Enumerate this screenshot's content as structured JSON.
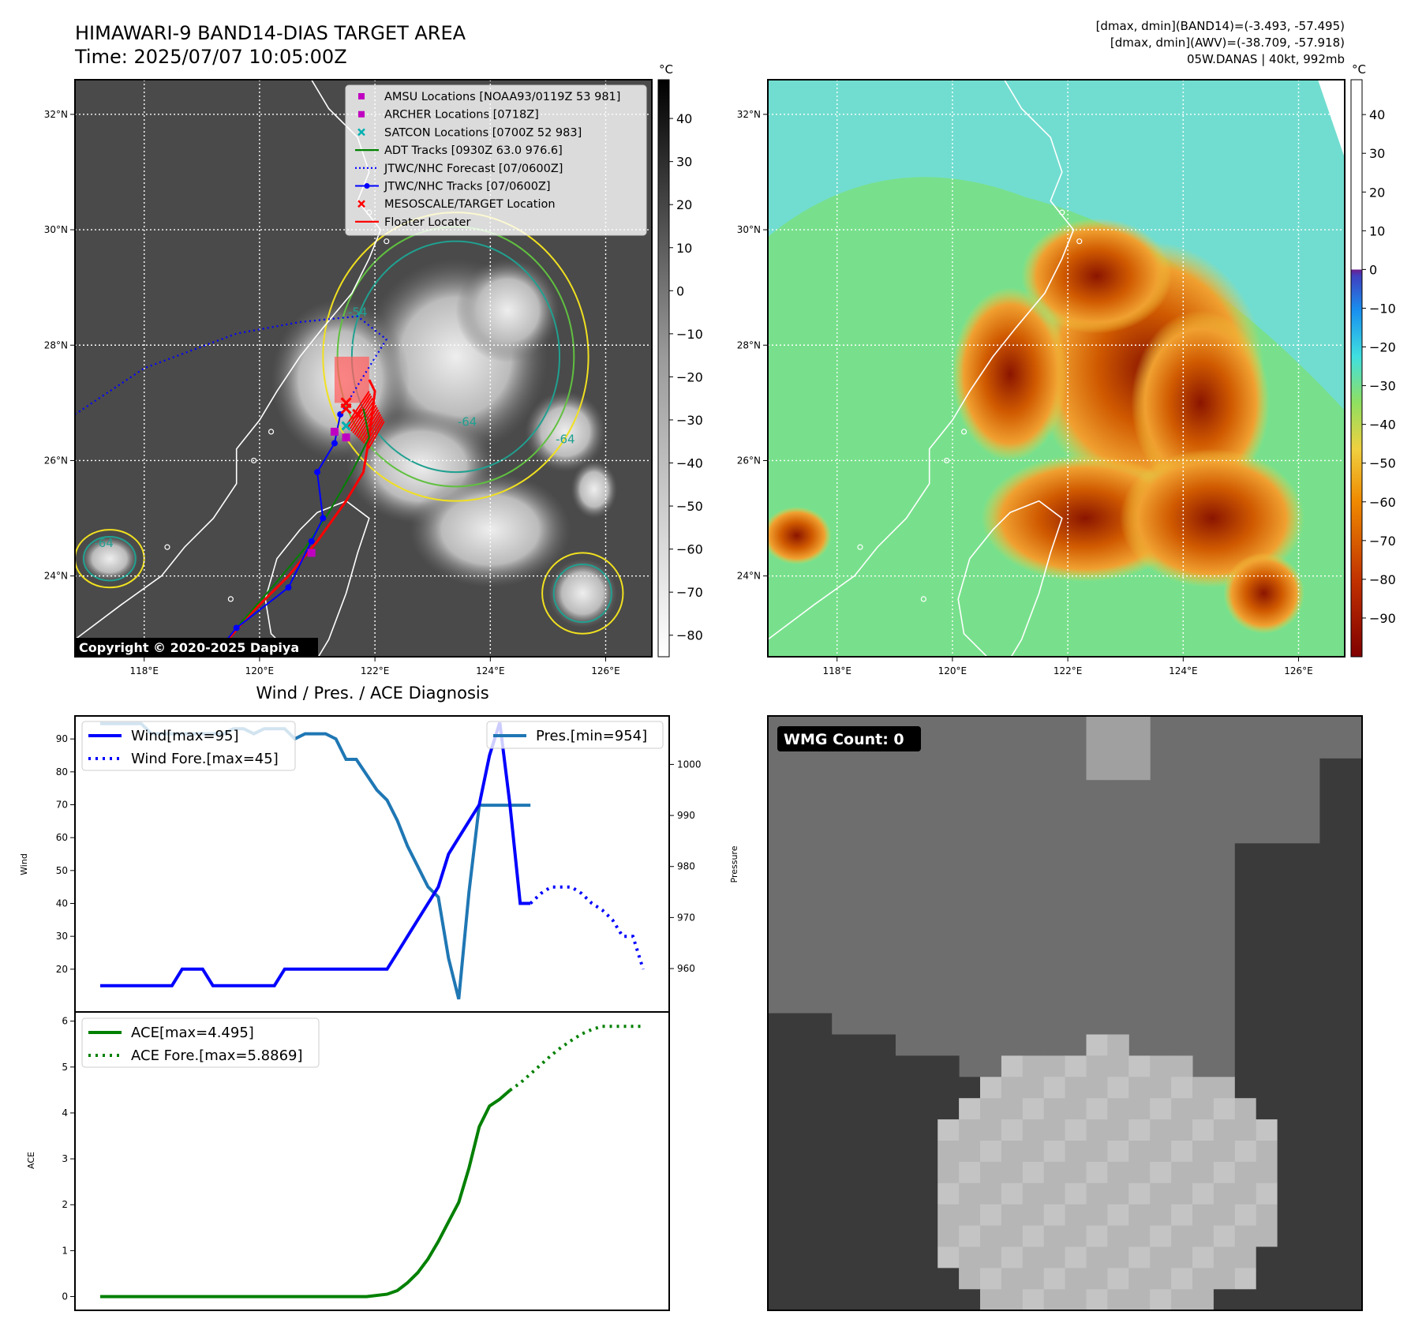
{
  "header": {
    "title_line1": "HIMAWARI-9 BAND14-DIAS TARGET AREA",
    "title_line2": "Time: 2025/07/07 10:05:00Z",
    "info_line1": "[dmax, dmin](BAND14)=(-3.493, -57.495)",
    "info_line2": "[dmax, dmin](AWV)=(-38.709, -57.918)",
    "info_line3": "05W.DANAS | 40kt, 992mb"
  },
  "copyright": "Copyright © 2020-2025 Dapiya",
  "map": {
    "lat_labels": [
      "32°N",
      "30°N",
      "28°N",
      "26°N",
      "24°N"
    ],
    "lat_values": [
      32,
      30,
      28,
      26,
      24
    ],
    "lon_labels": [
      "118°E",
      "120°E",
      "122°E",
      "124°E",
      "126°E"
    ],
    "lon_values": [
      118,
      120,
      122,
      124,
      126
    ],
    "lat_range": [
      22.6,
      32.6
    ],
    "lon_range": [
      116.8,
      126.8
    ],
    "contour_labels": [
      "-54",
      "-64",
      "-64",
      "-64"
    ]
  },
  "legend_map": [
    {
      "label": "AMSU Locations [NOAA93/0119Z 53 981]",
      "symbol": "square",
      "color": "#c000c0"
    },
    {
      "label": "ARCHER Locations [0718Z]",
      "symbol": "square",
      "color": "#c000c0"
    },
    {
      "label": "SATCON Locations [0700Z 52 983]",
      "symbol": "x",
      "color": "#00b0b0"
    },
    {
      "label": "ADT Tracks [0930Z 63.0 976.6]",
      "symbol": "line",
      "color": "#008000"
    },
    {
      "label": "JTWC/NHC Forecast [07/0600Z]",
      "symbol": "dotted",
      "color": "#0000ff"
    },
    {
      "label": "JTWC/NHC Tracks [07/0600Z]",
      "symbol": "line-dot",
      "color": "#0000ff"
    },
    {
      "label": "MESOSCALE/TARGET Location",
      "symbol": "x",
      "color": "#ff0000"
    },
    {
      "label": "Floater Locater",
      "symbol": "line",
      "color": "#ff0000"
    }
  ],
  "colorbar_ir": {
    "unit": "°C",
    "ticks": [
      "40",
      "30",
      "20",
      "10",
      "0",
      "−10",
      "−20",
      "−30",
      "−40",
      "−50",
      "−60",
      "−70",
      "−80"
    ],
    "tick_values": [
      40,
      30,
      20,
      10,
      0,
      -10,
      -20,
      -30,
      -40,
      -50,
      -60,
      -70,
      -80
    ],
    "range": [
      -85,
      49
    ]
  },
  "colorbar_wv": {
    "unit": "°C",
    "ticks": [
      "40",
      "30",
      "20",
      "10",
      "0",
      "−10",
      "−20",
      "−30",
      "−40",
      "−50",
      "−60",
      "−70",
      "−80",
      "−90"
    ],
    "tick_values": [
      40,
      30,
      20,
      10,
      0,
      -10,
      -20,
      -30,
      -40,
      -50,
      -60,
      -70,
      -80,
      -90
    ],
    "range": [
      -100,
      49
    ]
  },
  "tracks": {
    "jtwc_track": [
      [
        119.2,
        22.6
      ],
      [
        119.6,
        23.1
      ],
      [
        120.5,
        23.8
      ],
      [
        120.9,
        24.6
      ],
      [
        121.1,
        25.0
      ],
      [
        121.0,
        25.8
      ],
      [
        121.3,
        26.3
      ],
      [
        121.4,
        26.8
      ]
    ],
    "jtwc_forecast": [
      [
        116.8,
        26.8
      ],
      [
        118.0,
        27.6
      ],
      [
        119.6,
        28.2
      ],
      [
        120.7,
        28.4
      ],
      [
        121.7,
        28.5
      ],
      [
        122.2,
        28.1
      ],
      [
        121.7,
        27.3
      ],
      [
        121.4,
        26.8
      ]
    ],
    "adt_track": [
      [
        119.6,
        23.1
      ],
      [
        120.3,
        23.9
      ],
      [
        120.8,
        24.5
      ],
      [
        121.2,
        25.1
      ],
      [
        121.6,
        25.8
      ],
      [
        121.9,
        26.4
      ],
      [
        121.8,
        26.9
      ]
    ],
    "floater": [
      [
        119.2,
        22.6
      ],
      [
        119.8,
        23.3
      ],
      [
        120.5,
        24.0
      ],
      [
        121.0,
        24.6
      ],
      [
        121.5,
        25.3
      ],
      [
        121.8,
        25.8
      ],
      [
        121.9,
        26.4
      ],
      [
        122.0,
        27.2
      ],
      [
        121.9,
        27.4
      ]
    ],
    "amsu": [
      [
        121.3,
        26.5
      ],
      [
        120.9,
        24.4
      ]
    ],
    "archer": [
      [
        121.5,
        26.4
      ]
    ],
    "satcon": [
      [
        121.5,
        26.6
      ]
    ],
    "mesoscale": [
      [
        121.5,
        27.0
      ],
      [
        121.5,
        26.9
      ],
      [
        121.7,
        26.8
      ]
    ]
  },
  "wind_panel": {
    "title": "Wind / Pres. / ACE Diagnosis",
    "ylabel_left": "Wind",
    "ylabel_right": "Pressure",
    "wind_ticks": [
      20,
      30,
      40,
      50,
      60,
      70,
      80,
      90
    ],
    "wind_range": [
      7,
      97
    ],
    "pres_ticks": [
      960,
      970,
      980,
      990,
      1000
    ],
    "pres_range": [
      951.5,
      1009.5
    ],
    "legend_wind": "Wind[max=95]",
    "legend_wind_fore": "Wind Fore.[max=45]",
    "legend_pres": "Pres.[min=954]",
    "wind_color": "#0000ff",
    "pres_color": "#1f77b4"
  },
  "ace_panel": {
    "ylabel": "ACE",
    "ticks": [
      0,
      1,
      2,
      3,
      4,
      5,
      6
    ],
    "range": [
      -0.3,
      6.2
    ],
    "legend_ace": "ACE[max=4.495]",
    "legend_ace_fore": "ACE Fore.[max=5.8869]",
    "color": "#008000"
  },
  "wmg": {
    "badge": "WMG Count: 0"
  },
  "chart_data": [
    {
      "type": "line",
      "x": [
        0,
        1,
        2,
        3,
        4,
        5,
        6,
        7,
        8,
        9,
        10,
        11,
        12,
        13,
        14,
        15,
        16,
        17,
        18,
        19,
        20,
        21,
        22,
        23,
        24,
        25,
        26,
        27,
        28,
        29,
        30,
        31,
        32,
        33,
        34,
        35,
        36,
        37,
        38,
        39,
        40,
        41,
        42,
        43,
        44,
        45,
        46,
        47,
        48,
        49,
        50,
        51,
        52,
        53
      ],
      "series": [
        {
          "name": "Wind[max=95]",
          "x": [
            0,
            1,
            2,
            3,
            4,
            5,
            6,
            7,
            8,
            9,
            10,
            11,
            12,
            13,
            14,
            15,
            16,
            17,
            18,
            19,
            20,
            21,
            22,
            23,
            24,
            25,
            26,
            27,
            28,
            29,
            30,
            31,
            32,
            33,
            34,
            35,
            36,
            37,
            38,
            39
          ],
          "values": [
            15,
            15,
            15,
            15,
            15,
            15,
            15,
            15,
            20,
            20,
            20,
            15,
            15,
            15,
            15,
            15,
            15,
            15,
            20,
            20,
            20,
            20,
            20,
            20,
            20,
            20,
            20,
            20,
            20,
            25,
            30,
            35,
            40,
            45,
            55,
            60,
            65,
            70,
            85,
            95
          ]
        },
        {
          "name": "Wind (to forecast)",
          "x": [
            39,
            40,
            41,
            42
          ],
          "values": [
            95,
            70,
            40,
            40
          ]
        },
        {
          "name": "Wind Fore.[max=45]",
          "x": [
            42,
            43,
            44,
            45,
            46,
            47,
            48,
            49,
            50,
            51,
            52,
            53
          ],
          "values": [
            40,
            43,
            45,
            45,
            45,
            43,
            40,
            38,
            35,
            30,
            30,
            20
          ]
        },
        {
          "name": "Pres.[min=954]",
          "x": [
            0,
            1,
            2,
            3,
            4,
            5,
            6,
            7,
            8,
            9,
            10,
            11,
            12,
            13,
            14,
            15,
            16,
            17,
            18,
            19,
            20,
            21,
            22,
            23,
            24,
            25,
            26,
            27,
            28,
            29,
            30,
            31,
            32,
            33,
            34,
            35,
            36,
            37,
            38,
            39,
            40,
            41,
            42
          ],
          "values": [
            1008,
            1008,
            1008,
            1008,
            1008,
            1006,
            1006,
            1006,
            1006,
            1006,
            1006,
            1006,
            1006,
            1007,
            1007,
            1006,
            1007,
            1007,
            1007,
            1005,
            1006,
            1006,
            1006,
            1005,
            1001,
            1001,
            998,
            995,
            993,
            989,
            984,
            980,
            976,
            974,
            962,
            954,
            975,
            992,
            992,
            992,
            992,
            992,
            992
          ]
        }
      ],
      "ylim": [
        7,
        97
      ],
      "ylim_right": [
        951.5,
        1009.5
      ],
      "xlabel": "",
      "ylabel": "Wind",
      "ylabel_right": "Pressure"
    },
    {
      "type": "line",
      "series": [
        {
          "name": "ACE[max=4.495]",
          "x": [
            0,
            4,
            8,
            12,
            16,
            20,
            22,
            24,
            26,
            28,
            29,
            30,
            31,
            32,
            33,
            34,
            35,
            36,
            37,
            38,
            39,
            40
          ],
          "values": [
            0,
            0,
            0,
            0,
            0,
            0,
            0,
            0,
            0,
            0.05,
            0.13,
            0.3,
            0.52,
            0.82,
            1.2,
            1.63,
            2.05,
            2.8,
            3.7,
            4.15,
            4.3,
            4.495
          ]
        },
        {
          "name": "ACE Fore.[max=5.8869]",
          "x": [
            40,
            41,
            42,
            43,
            44,
            45,
            46,
            47,
            48,
            49,
            50,
            51,
            52,
            53
          ],
          "values": [
            4.495,
            4.65,
            4.85,
            5.05,
            5.25,
            5.43,
            5.58,
            5.72,
            5.82,
            5.8869,
            5.8869,
            5.8869,
            5.8869,
            5.8869
          ]
        }
      ],
      "ylim": [
        -0.3,
        6.2
      ],
      "xlabel": "",
      "ylabel": "ACE"
    }
  ]
}
